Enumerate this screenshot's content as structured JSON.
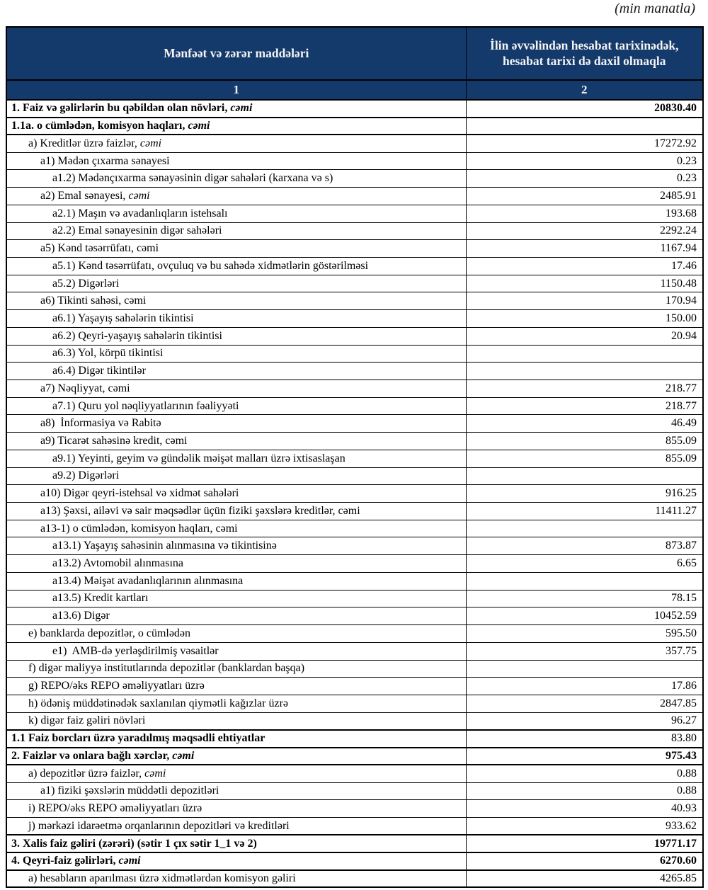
{
  "note": "(min manatla)",
  "colors": {
    "header_bg": "#14396b",
    "header_text": "#f4f4f4",
    "border": "#000000"
  },
  "table": {
    "col1_header": "Mənfəət və zərər maddələri",
    "col2_header": "İlin əvvəlindən hesabat tarixinədək, hesabat tarixi də daxil olmaqla",
    "col1_index": "1",
    "col2_index": "2",
    "rows": [
      {
        "label": "1. Faiz və gəlirlərin bu qəbildən olan növləri,",
        "suffix": "cəmi",
        "value": "20830.40",
        "bold": true,
        "indent": 0
      },
      {
        "label": "1.1a. o cümlədən, komisyon haqları,",
        "suffix": "cəmi",
        "value": "",
        "bold": true,
        "indent": 0
      },
      {
        "label": "a) Kreditlər üzrə faizlər,",
        "suffix": "cəmi",
        "value": "17272.92",
        "bold": false,
        "indent": 1
      },
      {
        "label": "a1) Mədən çıxarma sənayesi",
        "suffix": "",
        "value": "0.23",
        "bold": false,
        "indent": 2
      },
      {
        "label": "a1.2) Mədənçıxarma sənayəsinin digər sahələri (karxana və s)",
        "suffix": "",
        "value": "0.23",
        "bold": false,
        "indent": 3
      },
      {
        "label": "a2) Emal sənayesi,",
        "suffix": "cəmi",
        "value": "2485.91",
        "bold": false,
        "indent": 2
      },
      {
        "label": "a2.1) Maşın və avadanlıqların istehsalı",
        "suffix": "",
        "value": "193.68",
        "bold": false,
        "indent": 3
      },
      {
        "label": "a2.2) Emal sənayesinin digər sahələri",
        "suffix": "",
        "value": "2292.24",
        "bold": false,
        "indent": 3
      },
      {
        "label": "a5) Kənd təsərrüfatı, cəmi",
        "suffix": "",
        "value": "1167.94",
        "bold": false,
        "indent": 2
      },
      {
        "label": "a5.1) Kənd təsərrüfatı, ovçuluq və bu sahədə xidmətlərin göstərilməsi",
        "suffix": "",
        "value": "17.46",
        "bold": false,
        "indent": 3
      },
      {
        "label": "a5.2) Digərləri",
        "suffix": "",
        "value": "1150.48",
        "bold": false,
        "indent": 3
      },
      {
        "label": "a6) Tikinti sahəsi, cəmi",
        "suffix": "",
        "value": "170.94",
        "bold": false,
        "indent": 2
      },
      {
        "label": "a6.1) Yaşayış sahələrin tikintisi",
        "suffix": "",
        "value": "150.00",
        "bold": false,
        "indent": 3
      },
      {
        "label": "a6.2) Qeyri-yaşayış sahələrin tikintisi",
        "suffix": "",
        "value": "20.94",
        "bold": false,
        "indent": 3
      },
      {
        "label": "a6.3) Yol, körpü tikintisi",
        "suffix": "",
        "value": "",
        "bold": false,
        "indent": 3
      },
      {
        "label": "a6.4) Digər tikintilər",
        "suffix": "",
        "value": "",
        "bold": false,
        "indent": 3
      },
      {
        "label": "a7) Nəqliyyat, cəmi",
        "suffix": "",
        "value": "218.77",
        "bold": false,
        "indent": 2
      },
      {
        "label": "a7.1) Quru yol nəqliyyatlarının fəaliyyəti",
        "suffix": "",
        "value": "218.77",
        "bold": false,
        "indent": 3
      },
      {
        "label": "a8)  İnformasiya və Rabitə",
        "suffix": "",
        "value": "46.49",
        "bold": false,
        "indent": 2
      },
      {
        "label": "a9) Ticarət sahəsinə kredit, cəmi",
        "suffix": "",
        "value": "855.09",
        "bold": false,
        "indent": 2
      },
      {
        "label": "a9.1) Yeyinti, geyim və gündəlik məişət malları üzrə ixtisaslaşan",
        "suffix": "",
        "value": "855.09",
        "bold": false,
        "indent": 3
      },
      {
        "label": "a9.2) Digərləri",
        "suffix": "",
        "value": "",
        "bold": false,
        "indent": 3
      },
      {
        "label": "a10) Digər qeyri-istehsal və xidmət sahələri",
        "suffix": "",
        "value": "916.25",
        "bold": false,
        "indent": 2
      },
      {
        "label": "a13) Şəxsi, ailəvi və sair məqsədlər üçün fiziki şəxslərə kreditlər, cəmi",
        "suffix": "",
        "value": "11411.27",
        "bold": false,
        "indent": 2
      },
      {
        "label": "a13-1) o cümlədən, komisyon haqları, cəmi",
        "suffix": "",
        "value": "",
        "bold": false,
        "indent": 2
      },
      {
        "label": "a13.1) Yaşayış sahəsinin alınmasına və tikintisinə",
        "suffix": "",
        "value": "873.87",
        "bold": false,
        "indent": 3
      },
      {
        "label": "a13.2) Avtomobil alınmasına",
        "suffix": "",
        "value": "6.65",
        "bold": false,
        "indent": 3
      },
      {
        "label": "a13.4) Məişət avadanlıqlarının alınmasına",
        "suffix": "",
        "value": "",
        "bold": false,
        "indent": 3
      },
      {
        "label": "a13.5) Kredit kartları",
        "suffix": "",
        "value": "78.15",
        "bold": false,
        "indent": 3
      },
      {
        "label": "a13.6) Digər",
        "suffix": "",
        "value": "10452.59",
        "bold": false,
        "indent": 3
      },
      {
        "label": "e) banklarda depozitlər, o cümlədən",
        "suffix": "",
        "value": "595.50",
        "bold": false,
        "indent": 1
      },
      {
        "label": "e1)  AMB-də yerləşdirilmiş vəsaitlər",
        "suffix": "",
        "value": "357.75",
        "bold": false,
        "indent": 3
      },
      {
        "label": "f) digər maliyyə institutlarında depozitlər (banklardan başqa)",
        "suffix": "",
        "value": "",
        "bold": false,
        "indent": 1
      },
      {
        "label": "g) REPO/əks REPO əməliyyatları üzrə",
        "suffix": "",
        "value": "17.86",
        "bold": false,
        "indent": 1
      },
      {
        "label": "h) ödəniş müddətinədək saxlanılan qiymətli kağızlar üzrə",
        "suffix": "",
        "value": "2847.85",
        "bold": false,
        "indent": 1
      },
      {
        "label": "k) digər faiz gəliri növləri",
        "suffix": "",
        "value": "96.27",
        "bold": false,
        "indent": 1
      },
      {
        "label": "1.1 Faiz borcları üzrə yaradılmış məqsədli ehtiyatlar",
        "suffix": "",
        "value": "83.80",
        "bold": true,
        "value_bold": false,
        "indent": 0
      },
      {
        "label": "2. Faizlər və onlara bağlı xərclər,",
        "suffix": "cəmi",
        "value": "975.43",
        "bold": true,
        "indent": 0
      },
      {
        "label": "a) depozitlər üzrə faizlər,",
        "suffix": "cəmi",
        "value": "0.88",
        "bold": false,
        "indent": 1
      },
      {
        "label": "a1) fiziki şəxslərin müddətli depozitləri",
        "suffix": "",
        "value": "0.88",
        "bold": false,
        "indent": 2
      },
      {
        "label": "i) REPO/əks REPO əməliyyatları üzrə",
        "suffix": "",
        "value": "40.93",
        "bold": false,
        "indent": 1
      },
      {
        "label": "j) mərkəzi idarəetmə orqanlarının depozitləri və kreditləri",
        "suffix": "",
        "value": "933.62",
        "bold": false,
        "indent": 1
      },
      {
        "label": "3. Xalis faiz gəliri (zərəri) (sətir 1 çıx sətir 1_1 və 2)",
        "suffix": "",
        "value": "19771.17",
        "bold": true,
        "indent": 0
      },
      {
        "label": "4. Qeyri-faiz gəlirləri,",
        "suffix": "cəmi",
        "value": "6270.60",
        "bold": true,
        "indent": 0
      },
      {
        "label": "a) hesabların aparılması üzrə xidmətlərdən komisyon gəliri",
        "suffix": "",
        "value": "4265.85",
        "bold": false,
        "indent": 1
      }
    ]
  }
}
